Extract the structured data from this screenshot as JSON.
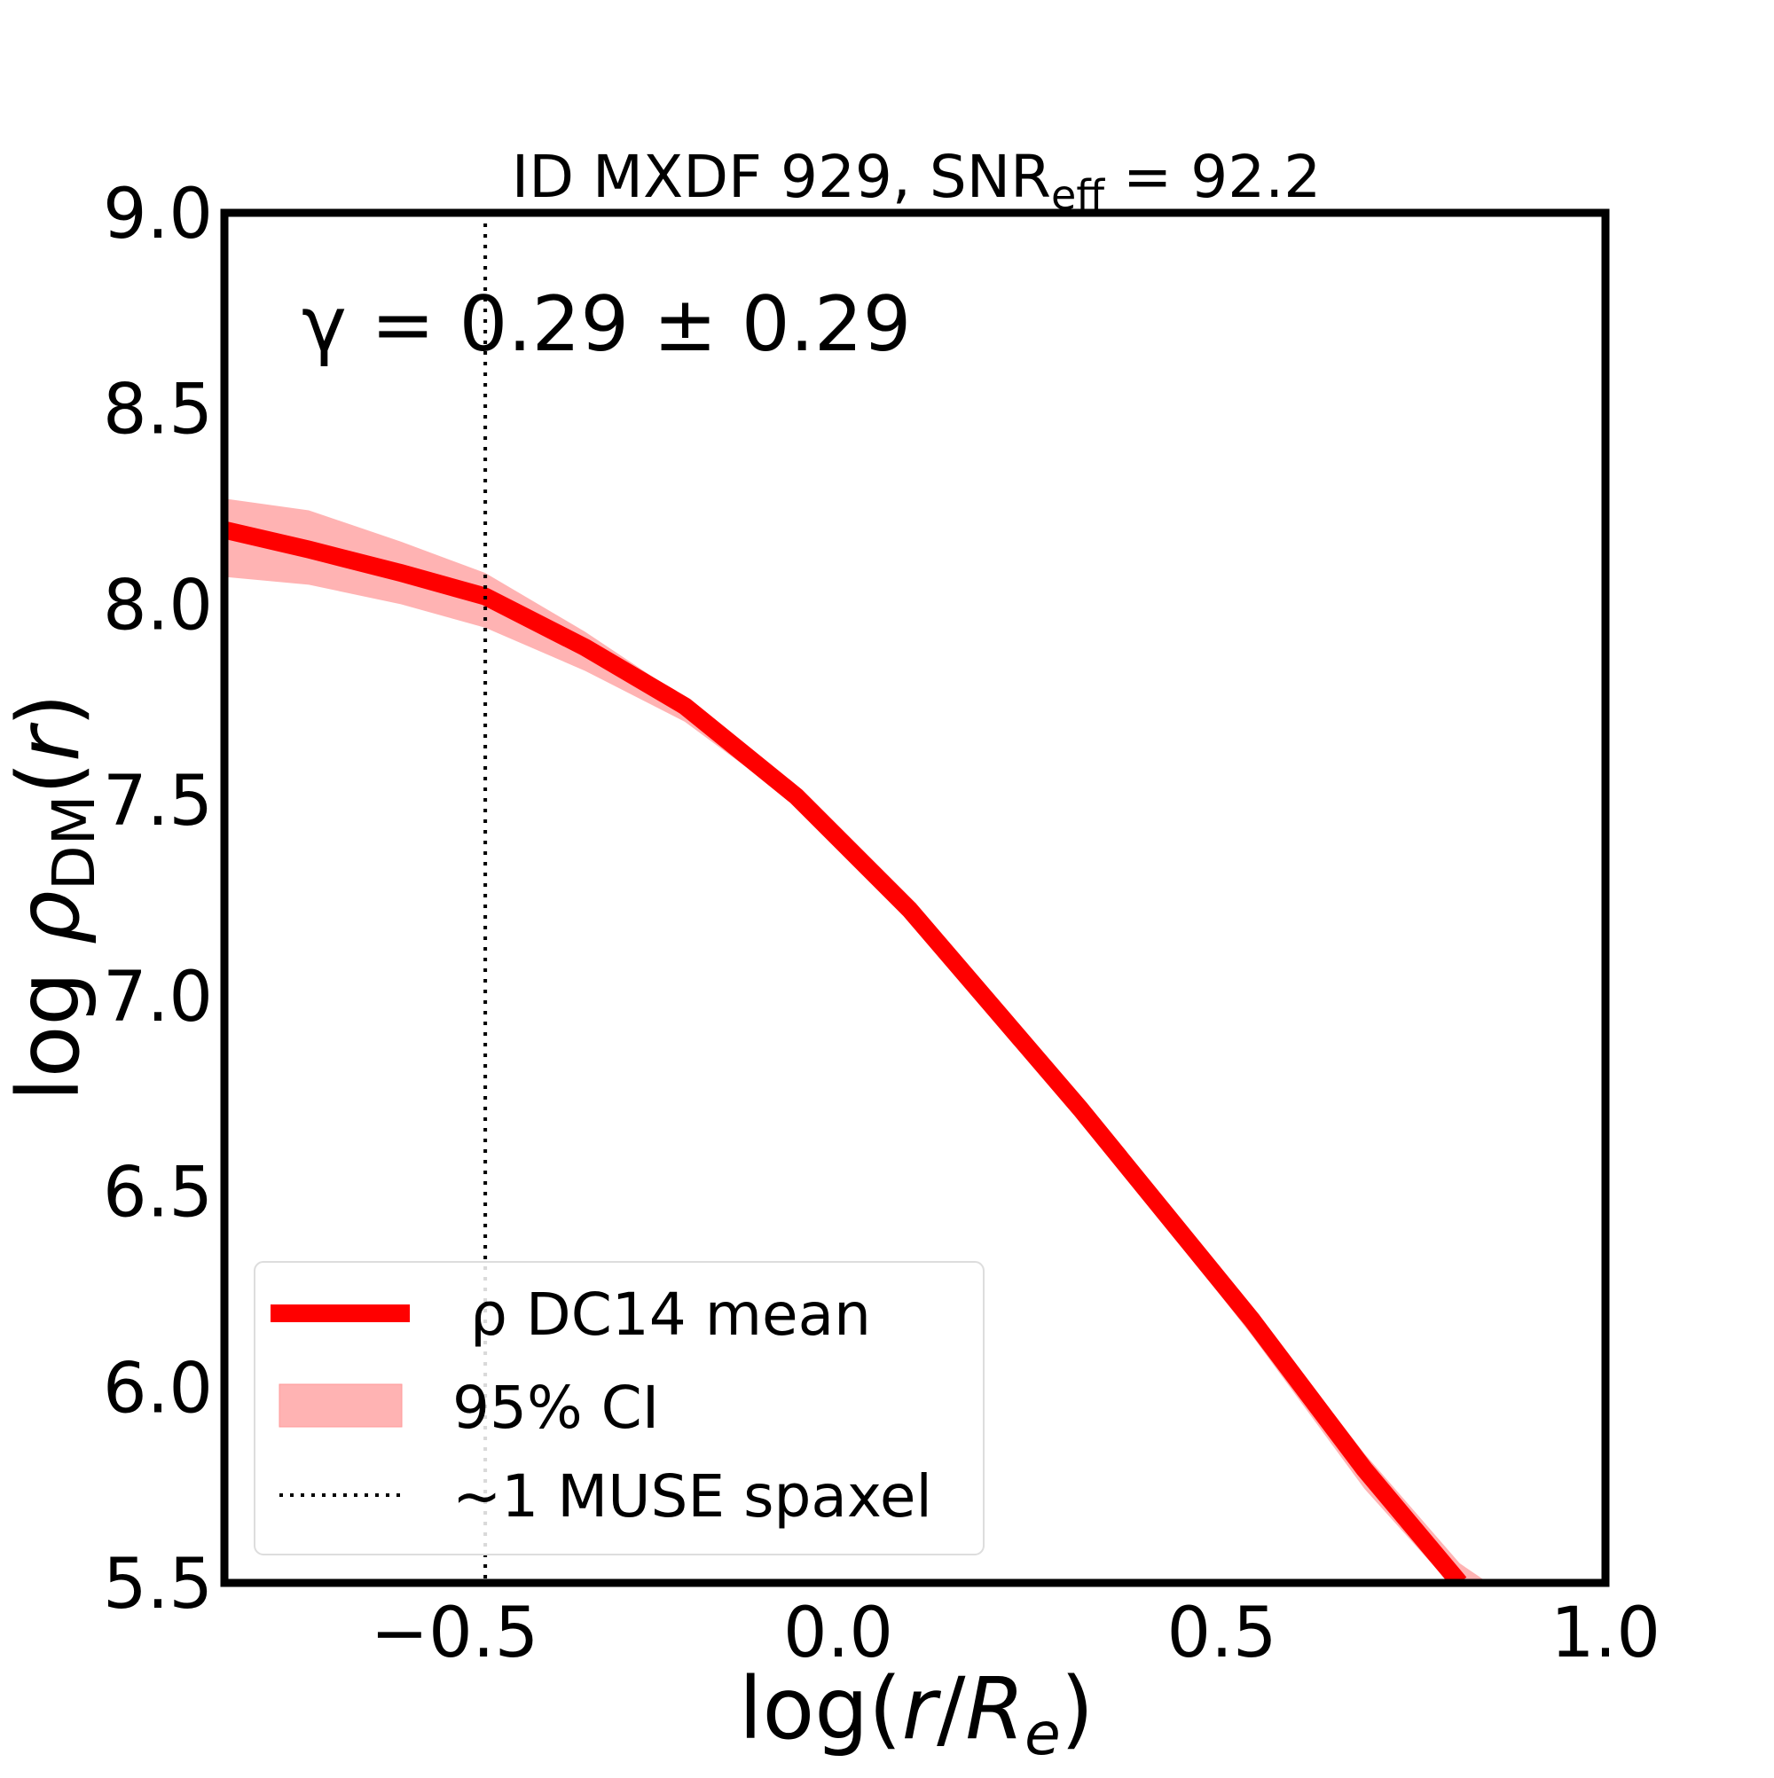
{
  "chart_data": {
    "type": "line",
    "title_main": "ID MXDF 929, SNR",
    "title_sub": "eff",
    "title_value": " = 92.2",
    "xlabel": "log(r/R_e)",
    "ylabel": "log ρ_DM(r)",
    "xlim": [
      -0.8,
      1.0
    ],
    "ylim": [
      5.5,
      9.0
    ],
    "xticks": [
      -0.5,
      0.0,
      0.5,
      1.0
    ],
    "xtick_labels": [
      "−0.5",
      "0.0",
      "0.5",
      "1.0"
    ],
    "yticks": [
      5.5,
      6.0,
      6.5,
      7.0,
      7.5,
      8.0,
      8.5,
      9.0
    ],
    "ytick_labels": [
      "5.5",
      "6.0",
      "6.5",
      "7.0",
      "7.5",
      "8.0",
      "8.5",
      "9.0"
    ],
    "grid": false,
    "annotation": "γ = 0.29 ± 0.29",
    "vline_x": -0.46,
    "series": [
      {
        "name": "ρ DC14 mean",
        "color": "#ff0000",
        "x": [
          -0.8,
          -0.69,
          -0.57,
          -0.46,
          -0.33,
          -0.2,
          -0.055,
          0.093,
          0.316,
          0.54,
          0.686,
          0.81
        ],
        "y": [
          8.19,
          8.14,
          8.08,
          8.02,
          7.89,
          7.74,
          7.51,
          7.22,
          6.71,
          6.17,
          5.79,
          5.5
        ]
      }
    ],
    "band": {
      "name": "95% CI",
      "color": "#ff9999",
      "x": [
        -0.8,
        -0.69,
        -0.57,
        -0.46,
        -0.33,
        -0.2,
        -0.055,
        0.093,
        0.316,
        0.54,
        0.686,
        0.81,
        0.84
      ],
      "upper": [
        8.27,
        8.24,
        8.16,
        8.08,
        7.93,
        7.76,
        7.52,
        7.23,
        6.73,
        6.2,
        5.83,
        5.55,
        5.51
      ],
      "lower": [
        8.07,
        8.05,
        8.0,
        7.94,
        7.83,
        7.7,
        7.49,
        7.2,
        6.69,
        6.13,
        5.74,
        5.47,
        5.45
      ]
    },
    "legend": {
      "placement": "lower-left",
      "entries": [
        "ρ DC14 mean",
        "95% CI",
        "~1 MUSE spaxel"
      ]
    }
  }
}
